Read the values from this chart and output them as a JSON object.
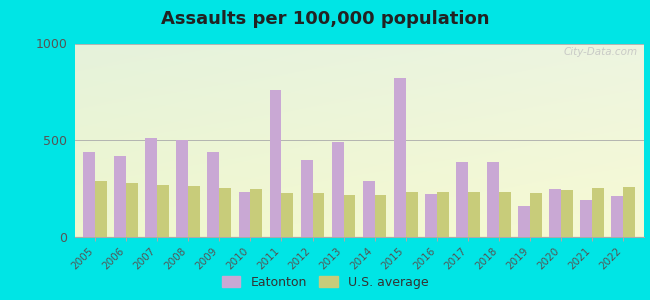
{
  "title": "Assaults per 100,000 population",
  "years": [
    2005,
    2006,
    2007,
    2008,
    2009,
    2010,
    2011,
    2012,
    2013,
    2014,
    2015,
    2016,
    2017,
    2018,
    2019,
    2020,
    2021,
    2022
  ],
  "eatonton": [
    440,
    420,
    510,
    500,
    440,
    230,
    760,
    400,
    490,
    290,
    820,
    220,
    390,
    390,
    160,
    250,
    190,
    210
  ],
  "us_average": [
    290,
    280,
    270,
    265,
    255,
    250,
    225,
    225,
    215,
    215,
    230,
    230,
    230,
    230,
    225,
    245,
    255,
    260
  ],
  "eatonton_color": "#c9a8d4",
  "us_color": "#c8cc7a",
  "ylim": [
    0,
    1000
  ],
  "yticks": [
    0,
    500,
    1000
  ],
  "bar_width": 0.38,
  "outer_bg": "#00e5e5",
  "watermark": "City-Data.com",
  "legend_eatonton": "Eatonton",
  "legend_us": "U.S. average",
  "grid_color": "#cccccc",
  "bg_colors": [
    "#d8ecd0",
    "#eef5e8",
    "#f5f8f0",
    "#e8f2e0"
  ],
  "title_fontsize": 13
}
